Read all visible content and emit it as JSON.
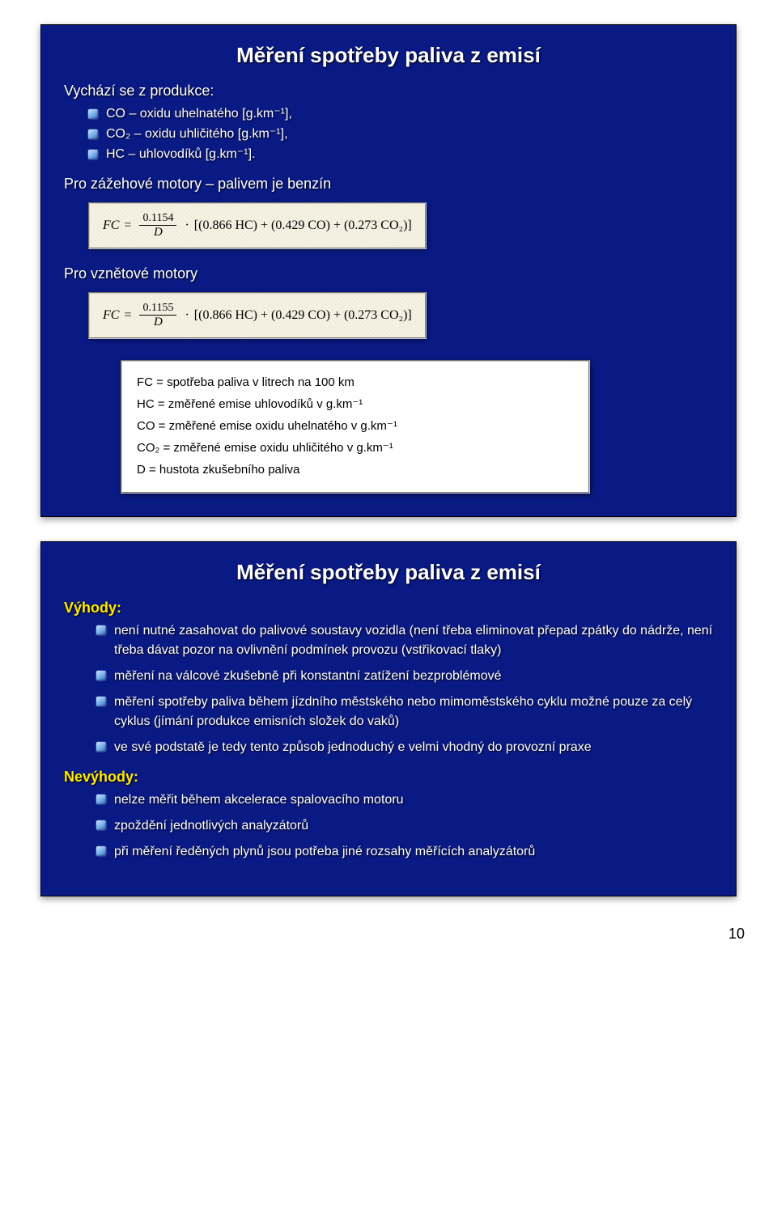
{
  "colors": {
    "slide_bg": "#0a1a85",
    "text": "#ffffff",
    "accent": "#ffe900",
    "box_bg": "#ffffff",
    "box_border": "#c8c8c8",
    "formula_bg": "#f4efde"
  },
  "slide1": {
    "title": "Měření spotřeby paliva z emisí",
    "intro": "Vychází se z produkce:",
    "produkce": [
      "CO – oxidu uhelnatého [g.km⁻¹],",
      "CO₂ – oxidu uhličitého [g.km⁻¹],",
      "HC – uhlovodíků [g.km⁻¹]."
    ],
    "benzin_label": "Pro zážehové motory – palivem je benzín",
    "benzin_coef": "0.1154",
    "diesel_label": "Pro vznětové motory",
    "diesel_coef": "0.1155",
    "formula_body": "[(0.866 HC) + (0.429 CO) + (0.273 CO₂)]",
    "legend": {
      "l1": "FC = spotřeba paliva v litrech na 100 km",
      "l2": "HC = změřené emise uhlovodíků v g.km⁻¹",
      "l3": "CO = změřené emise oxidu uhelnatého v g.km⁻¹",
      "l4": "CO₂ = změřené emise oxidu uhličitého v g.km⁻¹",
      "l5": "D = hustota zkušebního paliva"
    }
  },
  "slide2": {
    "title": "Měření spotřeby paliva z emisí",
    "adv_label": "Výhody:",
    "advantages": [
      "není nutné zasahovat do palivové soustavy vozidla (není třeba eliminovat přepad zpátky do nádrže, není třeba dávat pozor na ovlivnění podmínek provozu (vstřikovací tlaky)",
      "měření na válcové zkušebně při konstantní zatížení bezproblémové",
      "měření spotřeby paliva během jízdního městského nebo mimoměstského cyklu možné pouze za celý cyklus (jímání produkce emisních složek do vaků)",
      "ve své podstatě je tedy tento způsob jednoduchý e velmi vhodný do provozní praxe"
    ],
    "disadv_label": "Nevýhody:",
    "disadvantages": [
      "nelze měřit během akcelerace spalovacího motoru",
      "zpoždění jednotlivých analyzátorů",
      "při měření ředěných plynů jsou potřeba jiné rozsahy měřících analyzátorů"
    ]
  },
  "page_number": "10"
}
